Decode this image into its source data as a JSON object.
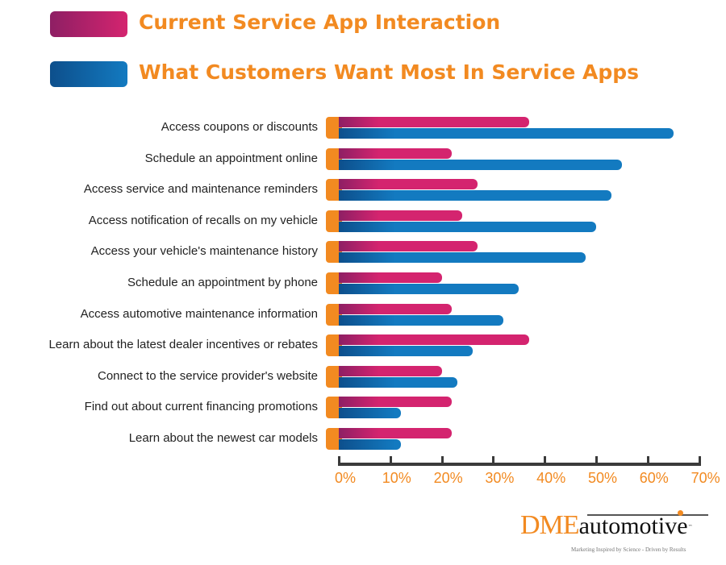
{
  "chart_data": {
    "type": "bar",
    "orientation": "horizontal",
    "categories": [
      "Access coupons or discounts",
      "Schedule an appointment online",
      "Access service and maintenance reminders",
      "Access notification of recalls on my vehicle",
      "Access your vehicle's maintenance history",
      "Schedule an appointment by phone",
      "Access automotive maintenance information",
      "Learn about the latest dealer incentives or rebates",
      "Connect to the service provider's website",
      "Find out about current financing promotions",
      "Learn about the newest car models"
    ],
    "series": [
      {
        "name": "Current Service App Interaction",
        "color": "#d4246f",
        "values": [
          37,
          22,
          27,
          24,
          27,
          20,
          22,
          37,
          20,
          22,
          22
        ]
      },
      {
        "name": "What Customers Want Most In Service Apps",
        "color": "#137ac0",
        "values": [
          65,
          55,
          53,
          50,
          48,
          35,
          32,
          26,
          23,
          12,
          12
        ]
      }
    ],
    "xlim": [
      0,
      70
    ],
    "xticks": [
      "0%",
      "10%",
      "20%",
      "30%",
      "40%",
      "50%",
      "60%",
      "70%"
    ],
    "legend_position": "top-left",
    "grid": false
  },
  "logo": {
    "brand": "DME",
    "name": "automotive",
    "tm": "™",
    "tagline": "Marketing Inspired by Science - Driven by Results"
  }
}
